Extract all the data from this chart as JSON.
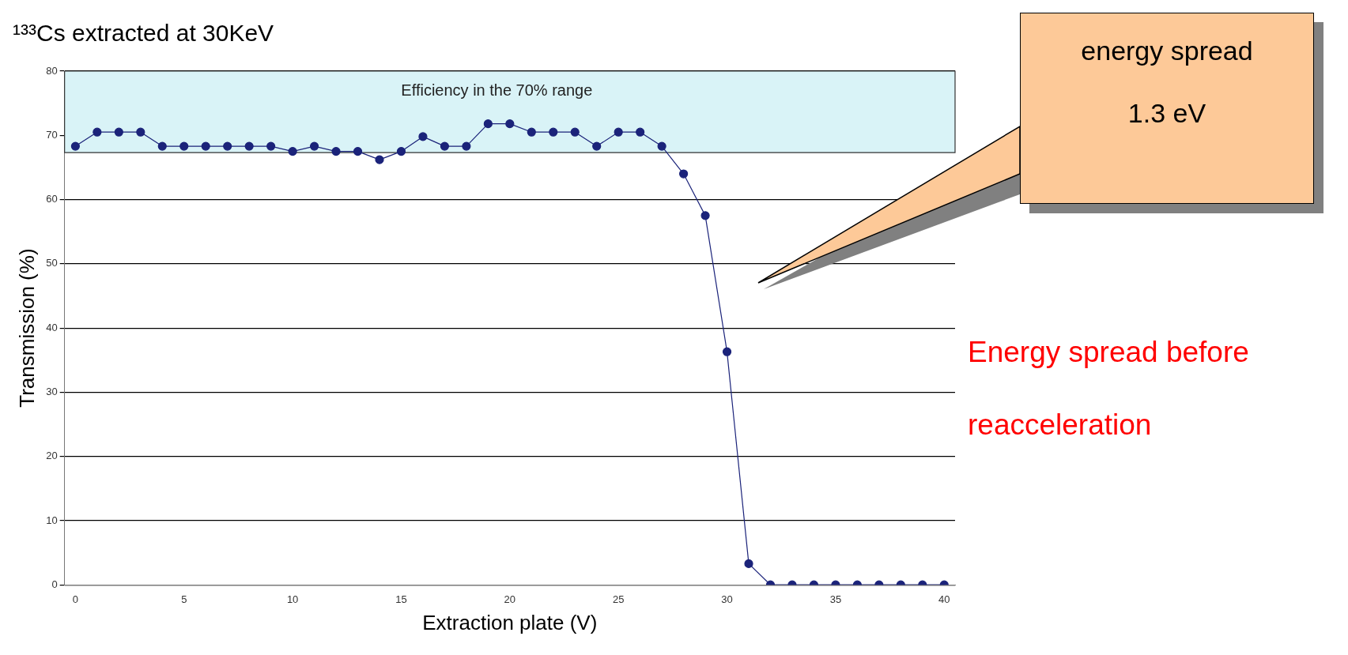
{
  "chart_data": {
    "type": "line",
    "title": "¹³³Cs extracted at 30KeV",
    "xlabel": "Extraction plate (V)",
    "ylabel": "Transmission (%)",
    "x": [
      0,
      1,
      2,
      3,
      4,
      5,
      6,
      7,
      8,
      9,
      10,
      11,
      12,
      13,
      14,
      15,
      16,
      17,
      18,
      19,
      20,
      21,
      22,
      23,
      24,
      25,
      26,
      27,
      28,
      29,
      30,
      31,
      32,
      33,
      34,
      35,
      36,
      37,
      38,
      39,
      40
    ],
    "series": [
      {
        "color": "#1b237a",
        "values": [
          68.3,
          70.5,
          70.5,
          70.5,
          68.3,
          68.3,
          68.3,
          68.3,
          68.3,
          68.3,
          67.5,
          68.3,
          67.5,
          67.5,
          66.2,
          67.5,
          69.8,
          68.3,
          68.3,
          71.8,
          71.8,
          70.5,
          70.5,
          70.5,
          68.3,
          70.5,
          70.5,
          68.3,
          64,
          57.5,
          36.3,
          3.3,
          0,
          0,
          0,
          0,
          0,
          0,
          0,
          0,
          0
        ]
      }
    ],
    "xlim": [
      -0.5,
      40.5
    ],
    "xticks": [
      0,
      5,
      10,
      15,
      20,
      25,
      30,
      35,
      40
    ],
    "ylim": [
      0,
      80
    ],
    "yticks": [
      0,
      10,
      20,
      30,
      40,
      50,
      60,
      70,
      80
    ],
    "bands": [
      {
        "axis": "y",
        "from": 67.3,
        "to": 80,
        "label": "Efficiency in the 70% range",
        "color": "#d9f3f7"
      }
    ],
    "annotations": [
      "energy spread",
      "1.3 eV",
      "Energy spread before reacceleration"
    ],
    "grid": "y",
    "legend": false,
    "marker": "circle",
    "line_style": "solid"
  }
}
